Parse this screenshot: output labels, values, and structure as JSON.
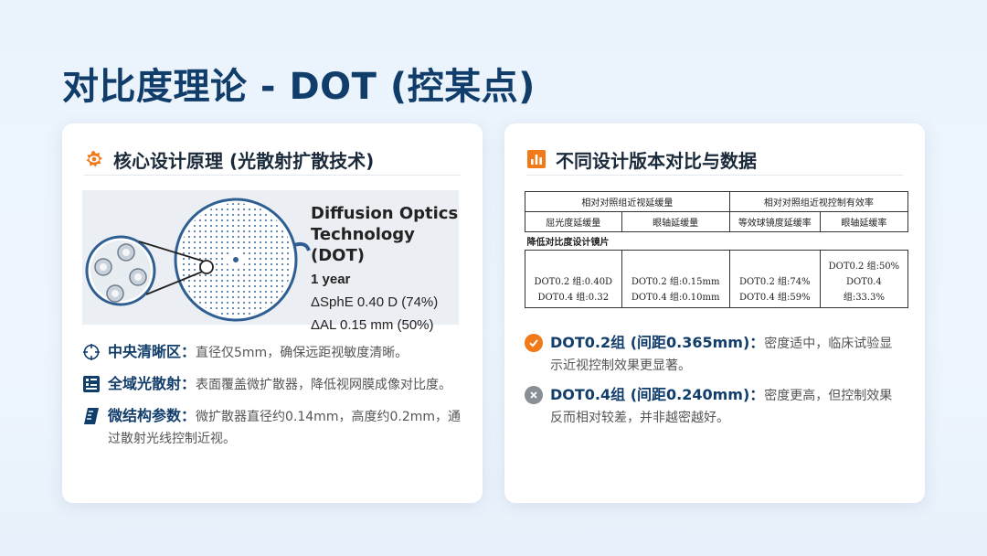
{
  "title": "对比度理论 - DOT (控某点)",
  "left_card": {
    "heading": "核心设计原理 (光散射扩散技术)",
    "figure": {
      "line1": "Diffusion Optics",
      "line2": "Technology (DOT)",
      "duration": "1 year",
      "sphe": "ΔSphE 0.40 D (74%)",
      "al": "ΔAL 0.15 mm (50%)"
    },
    "bullets": [
      {
        "icon": "crosshair-icon",
        "label": "中央清晰区：",
        "text": "直径仅5mm，确保远距视敏度清晰。"
      },
      {
        "icon": "grid-panel-icon",
        "label": "全域光散射：",
        "text": "表面覆盖微扩散器，降低视网膜成像对比度。"
      },
      {
        "icon": "ruler-icon",
        "label": "微结构参数：",
        "text": "微扩散器直径约0.14mm，高度约0.2mm，通过散射光线控制近视。"
      }
    ]
  },
  "right_card": {
    "heading": "不同设计版本对比与数据",
    "table": {
      "top_headers": [
        "相对对照组近视延缓量",
        "相对对照组近视控制有效率"
      ],
      "sub_headers": [
        "屈光度延缓量",
        "眼轴延缓量",
        "等效球镜度延缓率",
        "眼轴延缓率"
      ],
      "group_label": "降低对比度设计镜片",
      "cells": [
        [
          "DOT0.2 组:0.40D",
          "DOT0.4 组:0.32"
        ],
        [
          "DOT0.2 组:0.15mm",
          "DOT0.4 组:0.10mm"
        ],
        [
          "DOT0.2 组:74%",
          "DOT0.4 组:59%"
        ],
        [
          "DOT0.2 组:50%",
          "DOT0.4",
          "组:33.3%"
        ]
      ]
    },
    "notes": [
      {
        "icon": "check-circle-icon",
        "color": "#f07a1a",
        "label": "DOT0.2组 (间距0.365mm)：",
        "text": "密度适中，临床试验显示近视控制效果更显著。"
      },
      {
        "icon": "close-circle-icon",
        "color": "#8a8f95",
        "label": "DOT0.4组 (间距0.240mm)：",
        "text": "密度更高，但控制效果反而相对较差，并非越密越好。"
      }
    ]
  },
  "colors": {
    "accent": "#f07a1a",
    "navy": "#113d6b"
  }
}
